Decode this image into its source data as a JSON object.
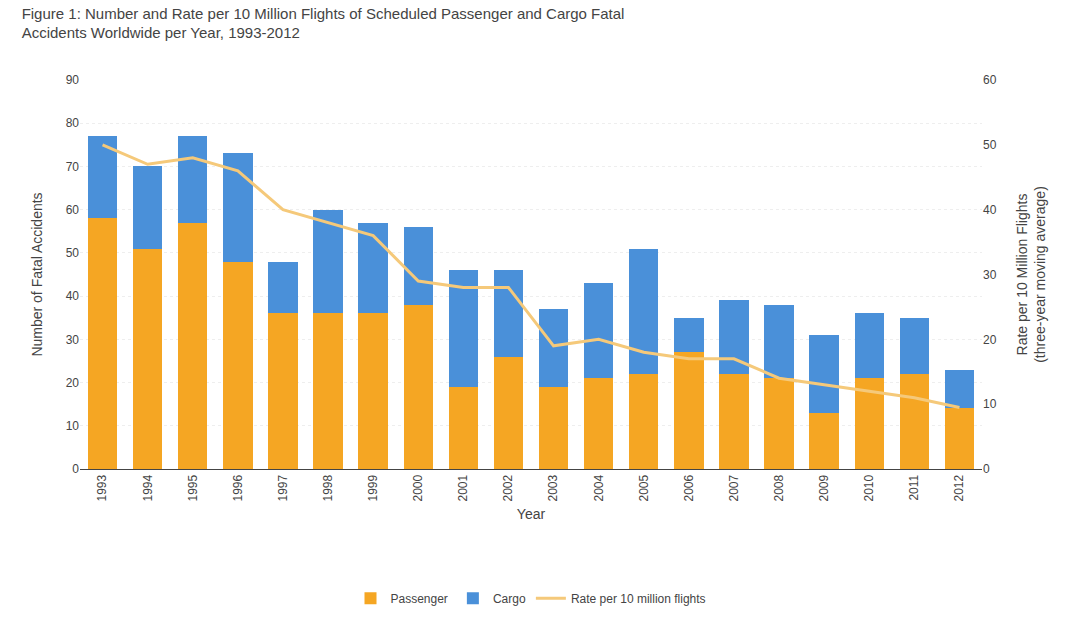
{
  "chart_data": {
    "type": "bar",
    "stacked": true,
    "title": "Figure 1: Number and Rate per 10 Million Flights of Scheduled Passenger and Cargo Fatal\nAccidents Worldwide per Year, 1993-2012",
    "xlabel": "Year",
    "ylabel": "Number of Fatal Accidents",
    "y2label": "Rate per 10 Million Flights\n(three-year moving average)",
    "categories": [
      "1993",
      "1994",
      "1995",
      "1996",
      "1997",
      "1998",
      "1999",
      "2000",
      "2001",
      "2002",
      "2003",
      "2004",
      "2005",
      "2006",
      "2007",
      "2008",
      "2009",
      "2010",
      "2011",
      "2012"
    ],
    "series": [
      {
        "name": "Passenger",
        "type": "bar",
        "color": "#F5A623",
        "values": [
          58,
          51,
          57,
          48,
          36,
          36,
          36,
          38,
          19,
          26,
          19,
          21,
          22,
          27,
          22,
          21,
          13,
          21,
          22,
          14
        ]
      },
      {
        "name": "Cargo",
        "type": "bar",
        "color": "#4A90D9",
        "values": [
          19,
          19,
          20,
          25,
          12,
          24,
          21,
          18,
          27,
          20,
          18,
          22,
          29,
          8,
          17,
          17,
          18,
          15,
          13,
          9
        ]
      },
      {
        "name": "Rate per 10 million flights",
        "type": "line",
        "axis": "y2",
        "color": "#F5C97A",
        "values": [
          50,
          47,
          48,
          46,
          40,
          38,
          36,
          29,
          28,
          28,
          19,
          20,
          18,
          17,
          17,
          14,
          13,
          12,
          11,
          9.5
        ]
      }
    ],
    "ylim": [
      0,
      90
    ],
    "yticks": [
      0,
      10,
      20,
      30,
      40,
      50,
      60,
      70,
      80,
      90
    ],
    "y2lim": [
      0,
      60
    ],
    "y2ticks": [
      0,
      10,
      20,
      30,
      40,
      50,
      60
    ],
    "grid": true,
    "legend": "bottom"
  }
}
